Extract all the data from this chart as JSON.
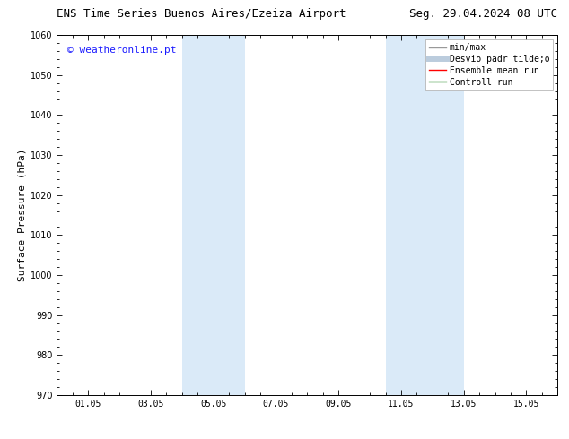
{
  "title_left": "ENS Time Series Buenos Aires/Ezeiza Airport",
  "title_right": "Seg. 29.04.2024 08 UTC",
  "ylabel": "Surface Pressure (hPa)",
  "ylim": [
    970,
    1060
  ],
  "yticks": [
    970,
    980,
    990,
    1000,
    1010,
    1020,
    1030,
    1040,
    1050,
    1060
  ],
  "xlim": [
    0,
    16
  ],
  "xticks": [
    1,
    3,
    5,
    7,
    9,
    11,
    13,
    15
  ],
  "xticklabels": [
    "01.05",
    "03.05",
    "05.05",
    "07.05",
    "09.05",
    "11.05",
    "13.05",
    "15.05"
  ],
  "watermark": "© weatheronline.pt",
  "watermark_color": "#1a1aff",
  "background_color": "#ffffff",
  "plot_bg_color": "#ffffff",
  "shaded_bands": [
    {
      "xmin": 4.0,
      "xmax": 6.0
    },
    {
      "xmin": 10.5,
      "xmax": 13.0
    }
  ],
  "band_color": "#daeaf8",
  "legend_entries": [
    {
      "label": "min/max",
      "color": "#999999",
      "lw": 1.0
    },
    {
      "label": "Desvio padr tilde;o",
      "color": "#bbccdd",
      "lw": 5
    },
    {
      "label": "Ensemble mean run",
      "color": "#ff0000",
      "lw": 1.0
    },
    {
      "label": "Controll run",
      "color": "#007700",
      "lw": 1.0
    }
  ],
  "title_fontsize": 9,
  "axis_label_fontsize": 8,
  "tick_fontsize": 7,
  "legend_fontsize": 7,
  "watermark_fontsize": 8
}
